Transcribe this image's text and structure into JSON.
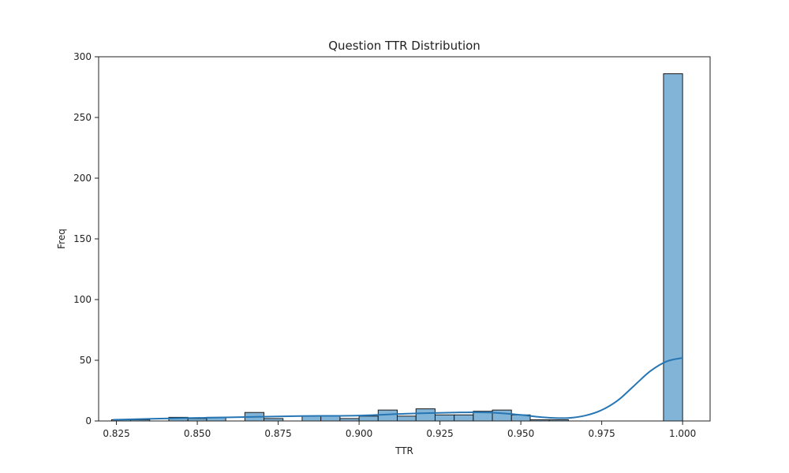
{
  "chart_data": {
    "type": "bar",
    "title": "Question TTR Distribution",
    "xlabel": "TTR",
    "ylabel": "Freq",
    "xlim": [
      0.8195,
      1.0085
    ],
    "ylim": [
      0,
      300
    ],
    "xticks": [
      0.825,
      0.85,
      0.875,
      0.9,
      0.925,
      0.95,
      0.975,
      1.0
    ],
    "xtick_labels": [
      "0.825",
      "0.850",
      "0.875",
      "0.900",
      "0.925",
      "0.950",
      "0.975",
      "1.000"
    ],
    "yticks": [
      0,
      50,
      100,
      150,
      200,
      250,
      300
    ],
    "ytick_labels": [
      "0",
      "50",
      "100",
      "150",
      "200",
      "250",
      "300"
    ],
    "grid": false,
    "bar_color": "#82b4d7",
    "edge_color": "#1a1a1a",
    "kde_color": "#2676b4",
    "series": [
      {
        "kind": "histogram",
        "bins": [
          {
            "x0": 0.8235,
            "x1": 0.8294,
            "count": 1
          },
          {
            "x0": 0.8294,
            "x1": 0.8353,
            "count": 1
          },
          {
            "x0": 0.8412,
            "x1": 0.8471,
            "count": 3
          },
          {
            "x0": 0.8471,
            "x1": 0.8529,
            "count": 2
          },
          {
            "x0": 0.8529,
            "x1": 0.8588,
            "count": 3
          },
          {
            "x0": 0.8647,
            "x1": 0.8706,
            "count": 7
          },
          {
            "x0": 0.8706,
            "x1": 0.8765,
            "count": 2
          },
          {
            "x0": 0.8824,
            "x1": 0.8882,
            "count": 4
          },
          {
            "x0": 0.8882,
            "x1": 0.8941,
            "count": 4
          },
          {
            "x0": 0.8941,
            "x1": 0.9,
            "count": 2
          },
          {
            "x0": 0.9,
            "x1": 0.9059,
            "count": 4
          },
          {
            "x0": 0.9059,
            "x1": 0.9118,
            "count": 9
          },
          {
            "x0": 0.9118,
            "x1": 0.9176,
            "count": 4
          },
          {
            "x0": 0.9176,
            "x1": 0.9235,
            "count": 10
          },
          {
            "x0": 0.9235,
            "x1": 0.9294,
            "count": 5
          },
          {
            "x0": 0.9294,
            "x1": 0.9353,
            "count": 5
          },
          {
            "x0": 0.9353,
            "x1": 0.9412,
            "count": 8
          },
          {
            "x0": 0.9412,
            "x1": 0.9471,
            "count": 9
          },
          {
            "x0": 0.9471,
            "x1": 0.9529,
            "count": 5
          },
          {
            "x0": 0.9529,
            "x1": 0.9588,
            "count": 1
          },
          {
            "x0": 0.9588,
            "x1": 0.9647,
            "count": 1
          },
          {
            "x0": 0.9941,
            "x1": 1.0,
            "count": 286
          }
        ]
      },
      {
        "kind": "kde",
        "x": [
          0.824,
          0.84,
          0.86,
          0.88,
          0.9,
          0.915,
          0.93,
          0.94,
          0.95,
          0.955,
          0.96,
          0.965,
          0.97,
          0.975,
          0.98,
          0.985,
          0.99,
          0.995,
          1.0
        ],
        "y": [
          1,
          2,
          3,
          4,
          4.5,
          6,
          7,
          7,
          5,
          3.5,
          2.5,
          2.5,
          4.5,
          9,
          17,
          29,
          41,
          49,
          52
        ]
      }
    ]
  }
}
